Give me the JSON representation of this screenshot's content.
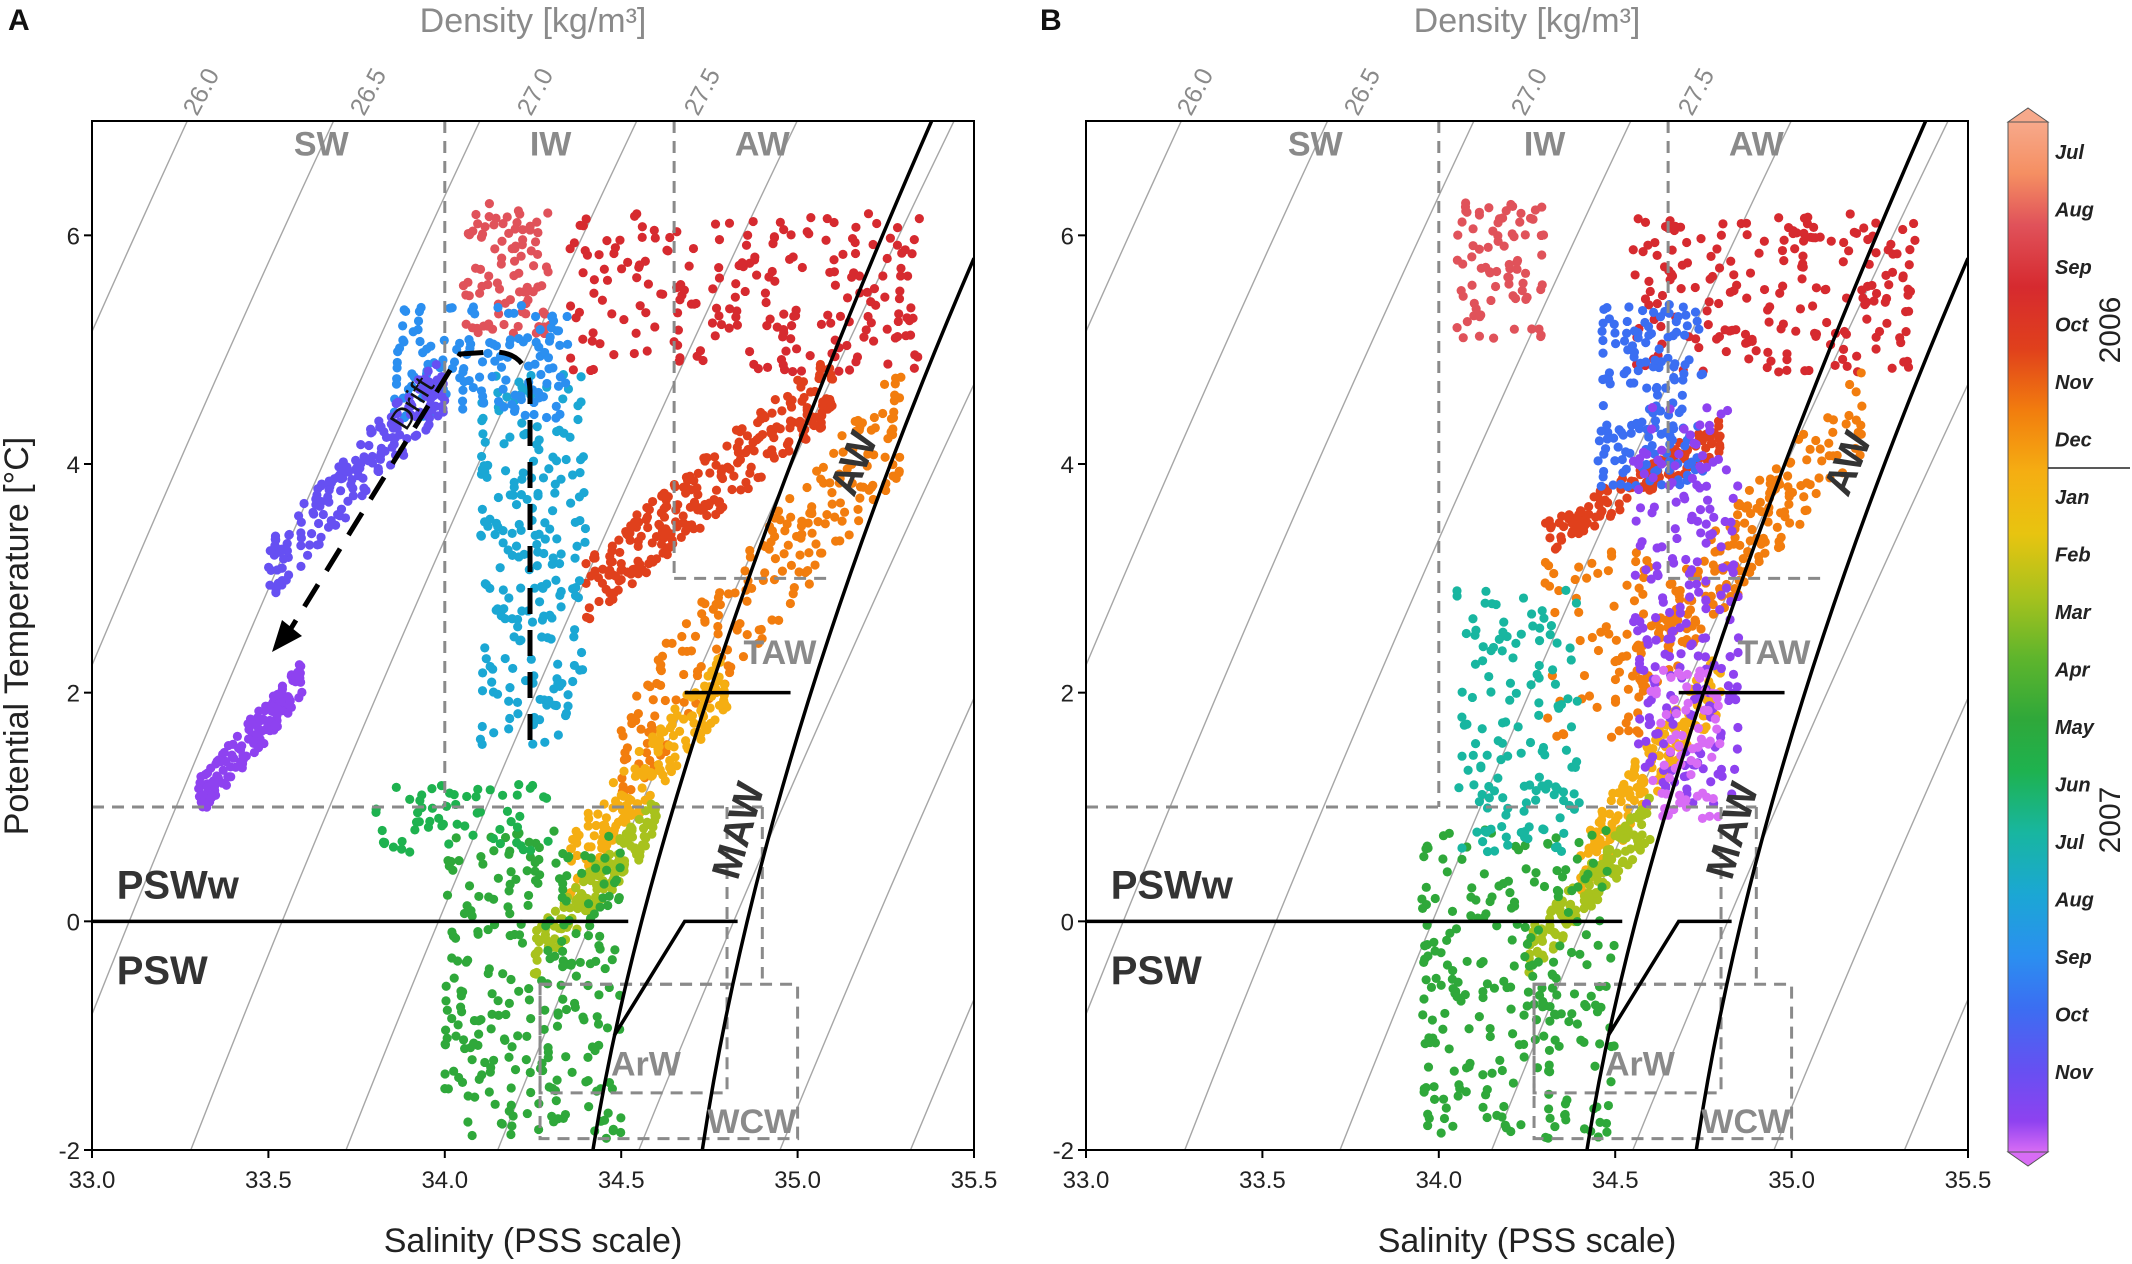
{
  "figure": {
    "panels": [
      "A",
      "B"
    ],
    "x_label": "Salinity (PSS scale)",
    "y_label": "Potential Temperature  [°C]",
    "density_label": "Density [kg/m³]",
    "drift_label": "Drift"
  },
  "chart_data": {
    "type": "scatter",
    "xlim": [
      33.0,
      35.5
    ],
    "ylim": [
      -2,
      7
    ],
    "x_ticks": [
      "33.0",
      "33.5",
      "34.0",
      "34.5",
      "35.0",
      "35.5"
    ],
    "y_ticks": [
      "-2",
      "0",
      "2",
      "4",
      "6"
    ],
    "density_isolines": [
      "26.0",
      "26.5",
      "27.0",
      "27.5"
    ],
    "water_masses_grey": [
      "SW",
      "IW",
      "AW",
      "TAW",
      "ArW",
      "WCW"
    ],
    "water_masses_black": [
      "PSWw",
      "PSW",
      "MAW",
      "AW"
    ],
    "colorbar": {
      "months": [
        "Jul",
        "Aug",
        "Sep",
        "Oct",
        "Nov",
        "Dec",
        "Jan",
        "Feb",
        "Mar",
        "Apr",
        "May",
        "Jun",
        "Jul",
        "Aug",
        "Sep",
        "Oct",
        "Nov"
      ],
      "years": [
        "2006",
        "2007"
      ],
      "colors": [
        "#f58f62",
        "#e0525a",
        "#d62a2f",
        "#e0401c",
        "#f27d0e",
        "#f5ae12",
        "#e8c410",
        "#a8c21d",
        "#5fb52c",
        "#2fa83a",
        "#1eb24f",
        "#18b6a0",
        "#1ba7d4",
        "#2b8ff0",
        "#3b6ef2",
        "#6650f2",
        "#8e42f0",
        "#d86cf5"
      ]
    },
    "series": [
      {
        "name": "Jul-Aug 2006",
        "salinity": [
          34.0,
          34.3
        ],
        "temperature": [
          5.2,
          6.3
        ]
      },
      {
        "name": "Sep-Oct 2006",
        "salinity": [
          34.4,
          35.4
        ],
        "temperature": [
          2.6,
          6.1
        ]
      },
      {
        "name": "Nov-Dec 2006",
        "salinity": [
          34.4,
          35.3
        ],
        "temperature": [
          0.4,
          4.9
        ]
      },
      {
        "name": "Jan-Feb 2007",
        "salinity": [
          34.2,
          34.8
        ],
        "temperature": [
          -0.5,
          1.5
        ]
      },
      {
        "name": "Mar-May 2007",
        "salinity": [
          33.9,
          34.5
        ],
        "temperature": [
          -1.9,
          0.8
        ]
      },
      {
        "name": "Jun-Jul 2007",
        "salinity": [
          34.1,
          34.4
        ],
        "temperature": [
          1.2,
          4.9
        ]
      },
      {
        "name": "Aug-Nov 2007",
        "salinity": [
          33.3,
          34.3
        ],
        "temperature": [
          0.9,
          5.4
        ]
      }
    ]
  }
}
